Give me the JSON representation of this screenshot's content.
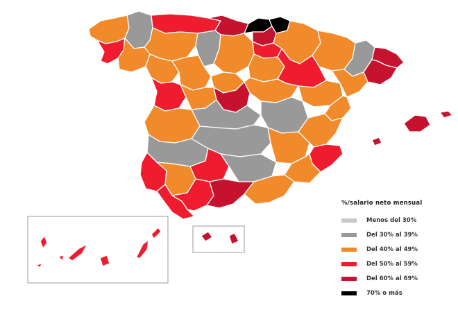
{
  "colors": {
    "menos_30": "#c8c8c8",
    "del_30_39": "#999999",
    "del_40_49": "#f08a2a",
    "del_50_59": "#ee1c2e",
    "del_60_69": "#c4122f",
    "mas_70": "#000000"
  },
  "legend": {
    "title": "%/salario neto mensual",
    "items": [
      {
        "label": "Menos del 30%",
        "color_key": "menos_30"
      },
      {
        "label": "Del 30% al 39%",
        "color_key": "del_30_39"
      },
      {
        "label": "Del 40% al 49%",
        "color_key": "del_40_49"
      },
      {
        "label": "Del 50% al 59%",
        "color_key": "del_50_59"
      },
      {
        "label": "Del 60% al 69%",
        "color_key": "del_60_69"
      },
      {
        "label": "70% o más",
        "color_key": "mas_70"
      }
    ]
  }
}
